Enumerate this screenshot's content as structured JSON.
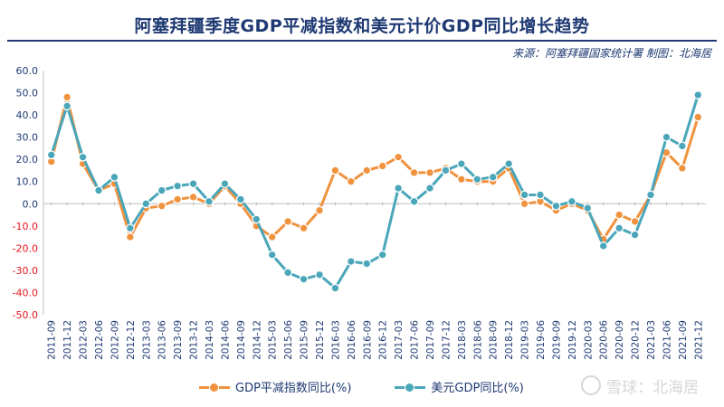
{
  "header": {
    "title": "阿塞拜疆季度GDP平减指数和美元计价GDP同比增长趋势",
    "source": "来源：阿塞拜疆国家统计署 制图：北海居"
  },
  "watermark": {
    "text": "雪球：北海居"
  },
  "colors": {
    "deflator": "#f0923e",
    "usd": "#4aa6b9",
    "title": "#1f3a73",
    "negative_tick": "#e8141d",
    "grid": "#d9d9d9"
  },
  "chart_data": {
    "type": "line",
    "title": "阿塞拜疆季度GDP平减指数和美元计价GDP同比增长趋势",
    "xlabel": "",
    "ylabel": "",
    "ylim": [
      -50,
      60
    ],
    "yticks": [
      "60.0",
      "50.0",
      "40.0",
      "30.0",
      "20.0",
      "10.0",
      "0.0",
      "-10.0",
      "-20.0",
      "-30.0",
      "-40.0",
      "-50.0"
    ],
    "ytick_values": [
      60,
      50,
      40,
      30,
      20,
      10,
      0,
      -10,
      -20,
      -30,
      -40,
      -50
    ],
    "grid": false,
    "legend_position": "bottom",
    "x": [
      "2011-09",
      "2011-12",
      "2012-03",
      "2012-06",
      "2012-09",
      "2012-12",
      "2013-03",
      "2013-06",
      "2013-09",
      "2013-12",
      "2014-03",
      "2014-06",
      "2014-09",
      "2014-12",
      "2015-03",
      "2015-06",
      "2015-09",
      "2015-12",
      "2016-03",
      "2016-06",
      "2016-09",
      "2016-12",
      "2017-03",
      "2017-06",
      "2017-09",
      "2017-12",
      "2018-03",
      "2018-06",
      "2018-09",
      "2018-12",
      "2019-03",
      "2019-06",
      "2019-09",
      "2019-12",
      "2020-03",
      "2020-06",
      "2020-09",
      "2020-12",
      "2021-03",
      "2021-06",
      "2021-09",
      "2021-12"
    ],
    "series": [
      {
        "name": "GDP平减指数同比(%)",
        "color": "#f0923e",
        "values": [
          19,
          48,
          18,
          6,
          9,
          -15,
          -2,
          -1,
          2,
          3,
          0,
          8,
          0,
          -10,
          -15,
          -8,
          -11,
          -3,
          15,
          10,
          15,
          17,
          21,
          14,
          14,
          16,
          11,
          10,
          10,
          16,
          0,
          1,
          -3,
          0,
          -3,
          -16,
          -5,
          -8,
          4,
          23,
          16,
          39
        ]
      },
      {
        "name": "美元GDP同比(%)",
        "color": "#4aa6b9",
        "values": [
          22,
          44,
          21,
          6,
          12,
          -11,
          0,
          6,
          8,
          9,
          1,
          9,
          2,
          -7,
          -23,
          -31,
          -34,
          -32,
          -38,
          -26,
          -27,
          -23,
          7,
          1,
          7,
          15,
          18,
          11,
          12,
          18,
          4,
          4,
          -1,
          1,
          -2,
          -19,
          -11,
          -14,
          4,
          30,
          26,
          49
        ]
      }
    ]
  }
}
